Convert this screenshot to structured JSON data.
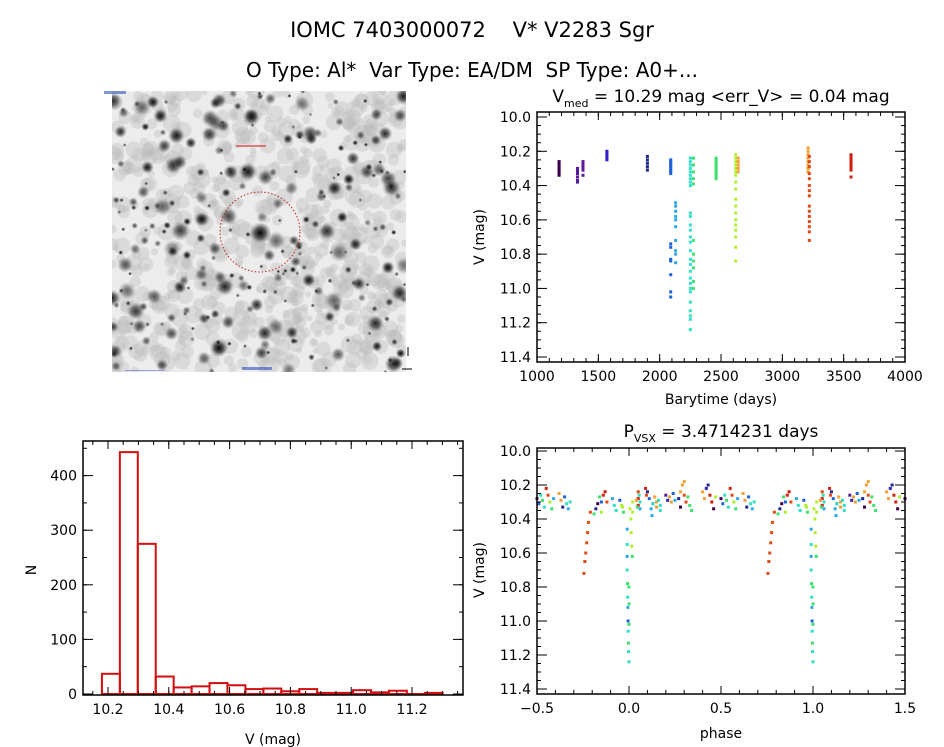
{
  "header": {
    "title": "IOMC 7403000072    V* V2283 Sgr",
    "subtitle": "O Type: Al*  Var Type: EA/DM  SP Type: A0+..."
  },
  "colors": {
    "histogram": "#d01010",
    "circle": "#c02020",
    "seasons": [
      "#3c0050",
      "#5a1a9a",
      "#3020c8",
      "#1c2a8c",
      "#1e64d8",
      "#30a8e8",
      "#30e0c8",
      "#40e070",
      "#b0f030",
      "#e04a14",
      "#d02010",
      "#f0a030"
    ]
  },
  "chart_data": [
    {
      "type": "image",
      "description_icon": "star-field-finder-chart",
      "marker": "dotted-circle"
    },
    {
      "type": "scatter",
      "title_main": "V",
      "title_sub": "med",
      "title_rest": " = 10.29 mag <err_V> = 0.04 mag",
      "xlabel": "Barytime (days)",
      "ylabel": "V (mag)",
      "xlim": [
        1000,
        4000
      ],
      "ylim": [
        10.0,
        11.4
      ],
      "y_inverted": true,
      "xticks": [
        "1000",
        "1500",
        "2000",
        "2500",
        "3000",
        "3500",
        "4000"
      ],
      "yticks": [
        "10.0",
        "10.2",
        "10.4",
        "10.6",
        "10.8",
        "11.0",
        "11.2",
        "11.4"
      ],
      "seasons": [
        {
          "t": 1180,
          "color": 0,
          "V": [
            10.26,
            10.27,
            10.28,
            10.29,
            10.3,
            10.31,
            10.32,
            10.33,
            10.34
          ]
        },
        {
          "t": 1330,
          "color": 1,
          "V": [
            10.3,
            10.31,
            10.32,
            10.33,
            10.35,
            10.37,
            10.38
          ]
        },
        {
          "t": 1375,
          "color": 1,
          "V": [
            10.26,
            10.27,
            10.28,
            10.29,
            10.3,
            10.31,
            10.34
          ]
        },
        {
          "t": 1570,
          "color": 2,
          "V": [
            10.2,
            10.21,
            10.22,
            10.23,
            10.24,
            10.25
          ]
        },
        {
          "t": 1900,
          "color": 3,
          "V": [
            10.23,
            10.25,
            10.27,
            10.29,
            10.31
          ]
        },
        {
          "t": 2090,
          "color": 4,
          "V": [
            10.25,
            10.26,
            10.27,
            10.28,
            10.29,
            10.3,
            10.31,
            10.32,
            10.33,
            10.74,
            10.76,
            10.83,
            10.84,
            10.92,
            11.02,
            11.05
          ]
        },
        {
          "t": 2130,
          "color": 5,
          "V": [
            10.5,
            10.52,
            10.55,
            10.58,
            10.6,
            10.64,
            10.72,
            10.78,
            10.8,
            10.85
          ]
        },
        {
          "t": 2250,
          "color": 6,
          "V": [
            10.24,
            10.26,
            10.28,
            10.3,
            10.32,
            10.34,
            10.36,
            10.38,
            10.4,
            10.56,
            10.58,
            10.63,
            10.66,
            10.7,
            10.73,
            10.78,
            10.83,
            10.86,
            10.9,
            10.94,
            10.97,
            11.0,
            11.02,
            11.08,
            11.13,
            11.16,
            11.18,
            11.24
          ]
        },
        {
          "t": 2275,
          "color": 7,
          "V": [
            10.24,
            10.28,
            10.32,
            10.36,
            10.39,
            10.72,
            10.8,
            10.84,
            10.88,
            10.96,
            11.0
          ]
        },
        {
          "t": 2460,
          "color": 7,
          "V": [
            10.24,
            10.25,
            10.26,
            10.27,
            10.28,
            10.29,
            10.3,
            10.31,
            10.32,
            10.33,
            10.34,
            10.35,
            10.36
          ]
        },
        {
          "t": 2620,
          "color": 8,
          "V": [
            10.22,
            10.24,
            10.26,
            10.28,
            10.3,
            10.32,
            10.34,
            10.38,
            10.42,
            10.48,
            10.52,
            10.56,
            10.6,
            10.63,
            10.66,
            10.7,
            10.76,
            10.84
          ]
        },
        {
          "t": 2640,
          "color": 11,
          "V": [
            10.24,
            10.26,
            10.28,
            10.3,
            10.32
          ]
        },
        {
          "t": 3210,
          "color": 11,
          "V": [
            10.18,
            10.2,
            10.22,
            10.24,
            10.26,
            10.28,
            10.3,
            10.32
          ]
        },
        {
          "t": 3220,
          "color": 9,
          "V": [
            10.23,
            10.26,
            10.29,
            10.33,
            10.36,
            10.4,
            10.43,
            10.46,
            10.52,
            10.55,
            10.58,
            10.61,
            10.64,
            10.67,
            10.72
          ]
        },
        {
          "t": 3560,
          "color": 10,
          "V": [
            10.22,
            10.23,
            10.24,
            10.25,
            10.26,
            10.27,
            10.28,
            10.29,
            10.3,
            10.31,
            10.35
          ]
        }
      ]
    },
    {
      "type": "bar",
      "histogram": true,
      "xlabel": "V (mag)",
      "ylabel": "N",
      "xlim": [
        10.12,
        11.37
      ],
      "ylim": [
        0,
        465
      ],
      "xticks": [
        "10.2",
        "10.4",
        "10.6",
        "10.8",
        "11.0",
        "11.2"
      ],
      "yticks": [
        "0",
        "100",
        "200",
        "300",
        "400"
      ],
      "bin_start": 10.18,
      "bin_width": 0.059,
      "values": [
        37,
        443,
        275,
        32,
        12,
        14,
        20,
        16,
        9,
        10,
        5,
        9,
        2,
        2,
        7,
        3,
        6,
        0,
        2
      ]
    },
    {
      "type": "scatter",
      "title_main": "P",
      "title_sub": "VSX",
      "title_rest": " = 3.4714231 days",
      "xlabel": "phase",
      "ylabel": "V (mag)",
      "xlim": [
        -0.5,
        1.5
      ],
      "ylim": [
        10.0,
        11.4
      ],
      "y_inverted": true,
      "xticks": [
        "−0.5",
        "0.0",
        "0.5",
        "1.0",
        "1.5"
      ],
      "yticks": [
        "10.0",
        "10.2",
        "10.4",
        "10.6",
        "10.8",
        "11.0",
        "11.2",
        "11.4"
      ],
      "phase_repeated": true,
      "points": [
        [
          0.05,
          10.24,
          9
        ],
        [
          0.05,
          10.28,
          10
        ],
        [
          0.05,
          10.32,
          10
        ],
        [
          0.055,
          10.26,
          6
        ],
        [
          0.06,
          10.3,
          6
        ],
        [
          0.06,
          10.34,
          5
        ],
        [
          0.04,
          10.29,
          11
        ],
        [
          0.045,
          10.33,
          7
        ],
        [
          0.14,
          10.27,
          11
        ],
        [
          0.15,
          10.3,
          11
        ],
        [
          0.15,
          10.33,
          11
        ],
        [
          0.16,
          10.29,
          6
        ],
        [
          0.17,
          10.32,
          6
        ],
        [
          0.17,
          10.35,
          6
        ],
        [
          0.13,
          10.31,
          3
        ],
        [
          0.79,
          10.36,
          9
        ],
        [
          0.78,
          10.42,
          9
        ],
        [
          0.775,
          10.48,
          9
        ],
        [
          0.77,
          10.54,
          9
        ],
        [
          0.765,
          10.6,
          9
        ],
        [
          0.76,
          10.65,
          9
        ],
        [
          0.755,
          10.72,
          9
        ],
        [
          0.81,
          10.37,
          7
        ],
        [
          0.82,
          10.34,
          3
        ],
        [
          0.83,
          10.31,
          0
        ],
        [
          0.84,
          10.27,
          7
        ],
        [
          0.85,
          10.3,
          4
        ],
        [
          0.86,
          10.26,
          10
        ],
        [
          0.87,
          10.24,
          10
        ],
        [
          0.88,
          10.3,
          9
        ],
        [
          0.85,
          10.36,
          8
        ],
        [
          0.91,
          10.28,
          5
        ],
        [
          0.92,
          10.32,
          6
        ],
        [
          0.93,
          10.35,
          6
        ],
        [
          0.95,
          10.29,
          4
        ],
        [
          0.96,
          10.32,
          8
        ],
        [
          0.97,
          10.36,
          7
        ],
        [
          0.965,
          10.33,
          8
        ],
        [
          0.99,
          10.46,
          5
        ],
        [
          0.99,
          10.55,
          6
        ],
        [
          0.99,
          10.62,
          5
        ],
        [
          0.99,
          10.7,
          6
        ],
        [
          0.992,
          10.78,
          7
        ],
        [
          0.993,
          10.86,
          6
        ],
        [
          0.994,
          10.92,
          5
        ],
        [
          0.995,
          11.0,
          4
        ],
        [
          0.996,
          11.06,
          6
        ],
        [
          0.997,
          11.13,
          7
        ],
        [
          0.998,
          11.18,
          6
        ],
        [
          1.0,
          11.24,
          6
        ],
        [
          0.005,
          10.34,
          8
        ],
        [
          0.01,
          10.4,
          8
        ],
        [
          0.012,
          10.48,
          8
        ],
        [
          0.015,
          10.56,
          8
        ],
        [
          0.018,
          10.62,
          7
        ],
        [
          0.02,
          10.36,
          8
        ],
        [
          0.02,
          10.3,
          8
        ],
        [
          0.0,
          10.8,
          7
        ],
        [
          0.0,
          10.9,
          7
        ],
        [
          0.0,
          11.02,
          7
        ],
        [
          0.09,
          10.22,
          10
        ],
        [
          0.095,
          10.26,
          9
        ],
        [
          0.1,
          10.24,
          3
        ],
        [
          0.11,
          10.28,
          4
        ],
        [
          0.12,
          10.34,
          5
        ],
        [
          0.125,
          10.38,
          5
        ],
        [
          0.13,
          10.31,
          6
        ],
        [
          0.2,
          10.26,
          1
        ],
        [
          0.21,
          10.29,
          2
        ],
        [
          0.22,
          10.27,
          11
        ],
        [
          0.23,
          10.3,
          11
        ],
        [
          0.24,
          10.25,
          4
        ],
        [
          0.25,
          10.29,
          5
        ],
        [
          0.27,
          10.28,
          3
        ],
        [
          0.28,
          10.24,
          11
        ],
        [
          0.29,
          10.2,
          11
        ],
        [
          0.3,
          10.18,
          11
        ],
        [
          0.3,
          10.26,
          9
        ],
        [
          0.31,
          10.3,
          9
        ],
        [
          0.32,
          10.27,
          7
        ],
        [
          0.33,
          10.32,
          7
        ],
        [
          0.34,
          10.35,
          7
        ],
        [
          0.28,
          10.33,
          0
        ],
        [
          0.4,
          10.24,
          11
        ],
        [
          0.41,
          10.28,
          11
        ],
        [
          0.42,
          10.22,
          2
        ],
        [
          0.43,
          10.2,
          3
        ],
        [
          0.44,
          10.26,
          10
        ],
        [
          0.45,
          10.3,
          10
        ],
        [
          0.46,
          10.34,
          0
        ],
        [
          0.47,
          10.27,
          8
        ],
        [
          0.5,
          10.28,
          0
        ],
        [
          0.51,
          10.31,
          4
        ],
        [
          0.52,
          10.26,
          6
        ],
        [
          0.53,
          10.29,
          7
        ],
        [
          0.54,
          10.33,
          6
        ],
        [
          0.55,
          10.22,
          10
        ],
        [
          0.56,
          10.26,
          9
        ],
        [
          0.57,
          10.3,
          8
        ],
        [
          0.58,
          10.34,
          7
        ],
        [
          0.59,
          10.28,
          5
        ],
        [
          0.62,
          10.25,
          11
        ],
        [
          0.63,
          10.29,
          11
        ],
        [
          0.64,
          10.33,
          3
        ],
        [
          0.65,
          10.27,
          4
        ],
        [
          0.66,
          10.31,
          6
        ],
        [
          0.67,
          10.34,
          5
        ],
        [
          0.68,
          10.3,
          6
        ]
      ]
    }
  ]
}
